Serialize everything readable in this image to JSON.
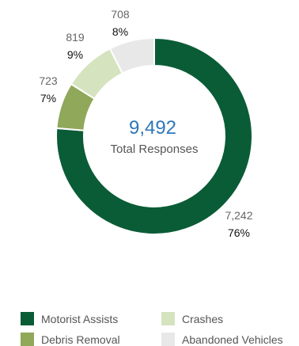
{
  "chart_data": {
    "type": "pie",
    "variant": "donut",
    "center": {
      "value": "9,492",
      "label": "Total Responses"
    },
    "slices": [
      {
        "name": "Motorist Assists",
        "value": 7242,
        "value_label": "7,242",
        "pct_label": "76%",
        "color": "#0a5c36"
      },
      {
        "name": "Debris Removal",
        "value": 723,
        "value_label": "723",
        "pct_label": "7%",
        "color": "#8fa85a"
      },
      {
        "name": "Crashes",
        "value": 819,
        "value_label": "819",
        "pct_label": "9%",
        "color": "#d5e3bf"
      },
      {
        "name": "Abandoned Vehicles",
        "value": 708,
        "value_label": "708",
        "pct_label": "8%",
        "color": "#e8e8e8"
      }
    ],
    "legend_position": "bottom"
  },
  "colors": {
    "center_value": "#2e77b8",
    "value_label": "#666666",
    "pct_label": "#111111"
  }
}
